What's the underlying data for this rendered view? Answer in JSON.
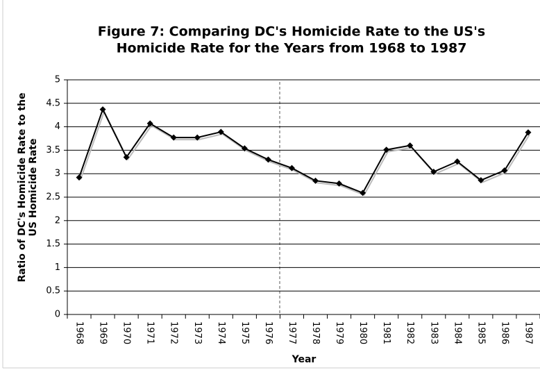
{
  "chart_data": {
    "type": "line",
    "title": [
      "Figure 7: Comparing DC's Homicide Rate to the US's",
      "Homicide Rate for the Years from 1968 to 1987"
    ],
    "x_label": "Year",
    "y_label": [
      "Ratio of DC's Homicide Rate to the",
      "US Homicide Rate"
    ],
    "categories": [
      "1968",
      "1969",
      "1970",
      "1971",
      "1972",
      "1973",
      "1974",
      "1975",
      "1976",
      "1977",
      "1978",
      "1979",
      "1980",
      "1981",
      "1982",
      "1983",
      "1984",
      "1985",
      "1986",
      "1987"
    ],
    "series": [
      {
        "color": "#000000",
        "values": [
          2.92,
          4.37,
          3.35,
          4.07,
          3.77,
          3.77,
          3.89,
          3.54,
          3.3,
          3.12,
          2.85,
          2.79,
          2.59,
          3.51,
          3.6,
          3.04,
          3.26,
          2.86,
          3.07,
          3.88
        ]
      }
    ],
    "ylim": [
      0,
      5
    ],
    "yticks": [
      0,
      0.5,
      1,
      1.5,
      2,
      2.5,
      3,
      3.5,
      4,
      4.5,
      5
    ],
    "grid": true
  }
}
